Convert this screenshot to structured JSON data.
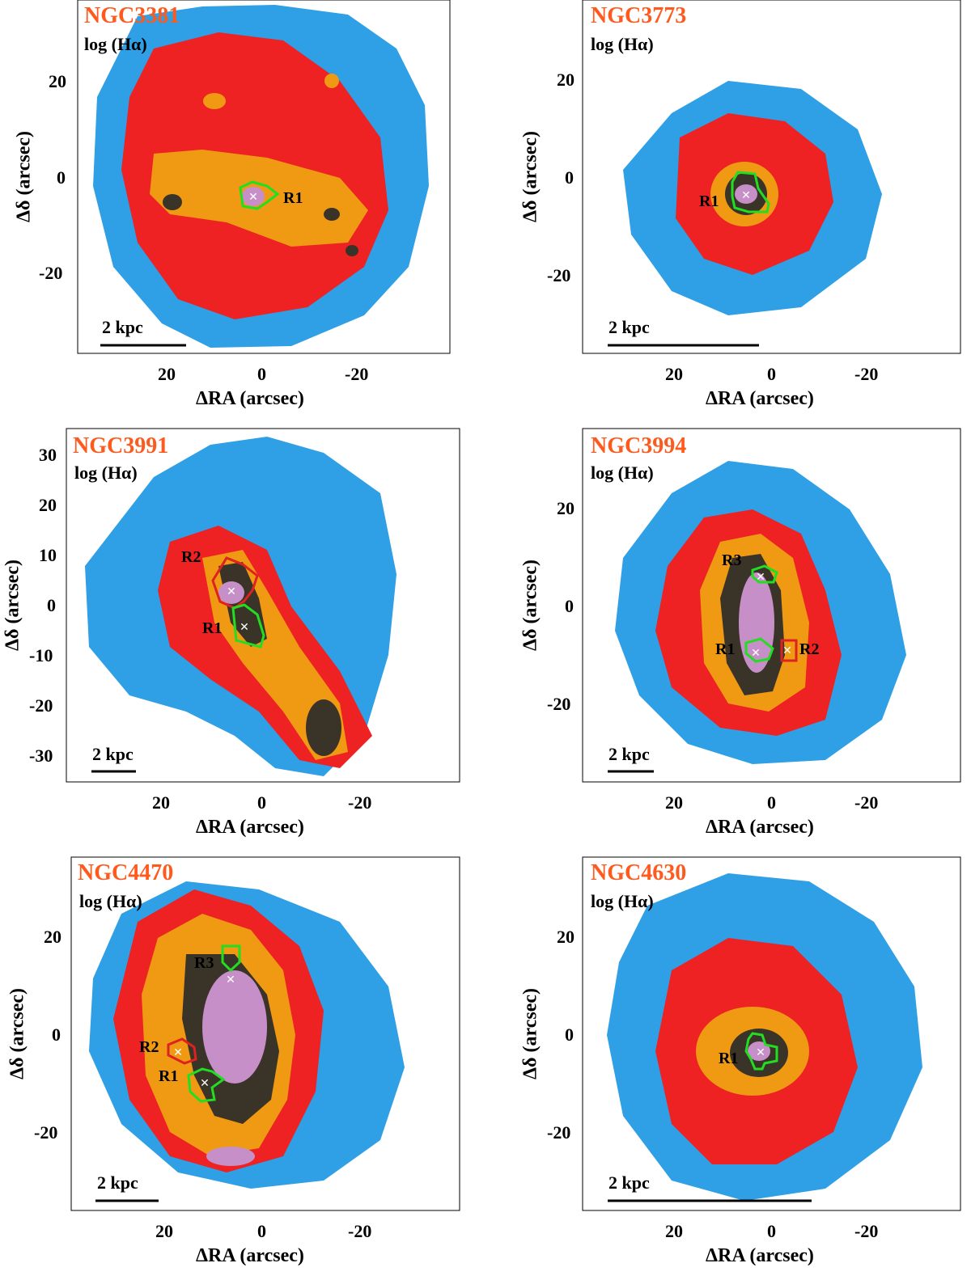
{
  "figure": {
    "panels": [
      {
        "galaxy": "NGC3381",
        "map_label": "log (Hα)",
        "scale_bar": "2 kpc",
        "x_label": "ΔRA (arcsec)",
        "y_label": "Δδ (arcsec)",
        "x_ticks": [
          "20",
          "0",
          "-20"
        ],
        "y_ticks": [
          "20",
          "0",
          "-20"
        ],
        "regions": [
          {
            "label": "R1",
            "color": "#22dd22"
          }
        ]
      },
      {
        "galaxy": "NGC3773",
        "map_label": "log (Hα)",
        "scale_bar": "2 kpc",
        "x_label": "ΔRA (arcsec)",
        "y_label": "Δδ (arcsec)",
        "x_ticks": [
          "20",
          "0",
          "-20"
        ],
        "y_ticks": [
          "20",
          "0",
          "-20"
        ],
        "regions": [
          {
            "label": "R1",
            "color": "#22dd22"
          }
        ]
      },
      {
        "galaxy": "NGC3991",
        "map_label": "log (Hα)",
        "scale_bar": "2 kpc",
        "x_label": "ΔRA (arcsec)",
        "y_label": "Δδ (arcsec)",
        "x_ticks": [
          "20",
          "0",
          "-20"
        ],
        "y_ticks": [
          "30",
          "20",
          "10",
          "0",
          "-10",
          "-20",
          "-30"
        ],
        "regions": [
          {
            "label": "R2",
            "color": "#dd2222"
          },
          {
            "label": "R1",
            "color": "#22dd22"
          }
        ]
      },
      {
        "galaxy": "NGC3994",
        "map_label": "log (Hα)",
        "scale_bar": "2 kpc",
        "x_label": "ΔRA (arcsec)",
        "y_label": "Δδ (arcsec)",
        "x_ticks": [
          "20",
          "0",
          "-20"
        ],
        "y_ticks": [
          "20",
          "0",
          "-20"
        ],
        "regions": [
          {
            "label": "R3",
            "color": "#22dd22"
          },
          {
            "label": "R1",
            "color": "#22dd22"
          },
          {
            "label": "R2",
            "color": "#dd2222"
          }
        ]
      },
      {
        "galaxy": "NGC4470",
        "map_label": "log (Hα)",
        "scale_bar": "2 kpc",
        "x_label": "ΔRA (arcsec)",
        "y_label": "Δδ (arcsec)",
        "x_ticks": [
          "20",
          "0",
          "-20"
        ],
        "y_ticks": [
          "20",
          "0",
          "-20"
        ],
        "regions": [
          {
            "label": "R3",
            "color": "#22dd22"
          },
          {
            "label": "R2",
            "color": "#dd2222"
          },
          {
            "label": "R1",
            "color": "#22dd22"
          }
        ]
      },
      {
        "galaxy": "NGC4630",
        "map_label": "log (Hα)",
        "scale_bar": "2 kpc",
        "x_label": "ΔRA (arcsec)",
        "y_label": "Δδ (arcsec)",
        "x_ticks": [
          "20",
          "0",
          "-20"
        ],
        "y_ticks": [
          "20",
          "0",
          "-20"
        ],
        "regions": [
          {
            "label": "R1",
            "color": "#22dd22"
          }
        ]
      }
    ],
    "colors": {
      "title": "#ff5a1e",
      "outer": "#2f9fe6",
      "mid": "#ee2222",
      "inner": "#f09a14",
      "core_dark": "#3a3328",
      "core_pink": "#c78fc8"
    }
  }
}
